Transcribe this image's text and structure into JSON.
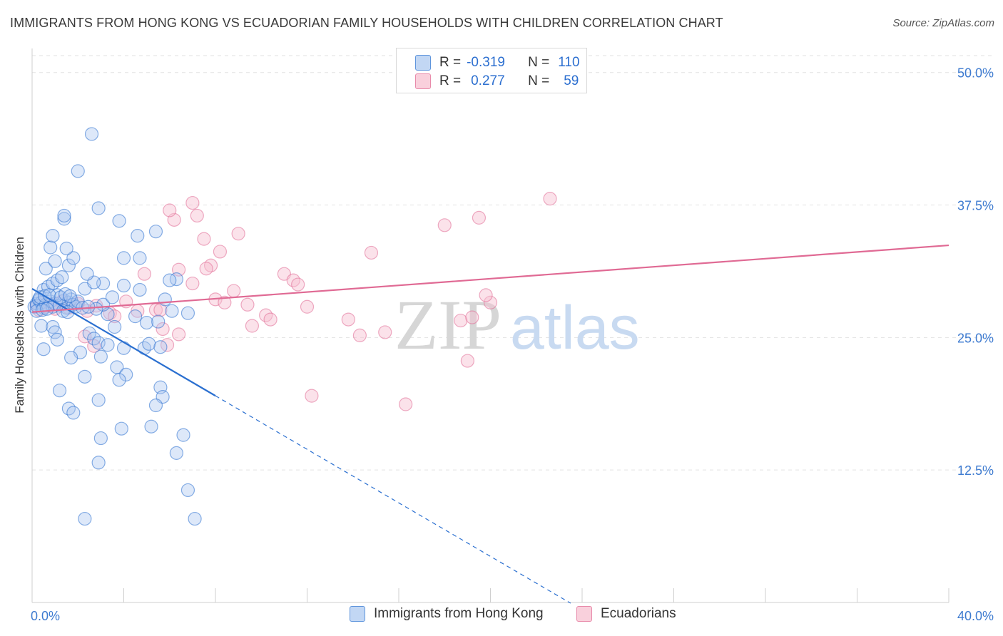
{
  "header": {
    "title": "IMMIGRANTS FROM HONG KONG VS ECUADORIAN FAMILY HOUSEHOLDS WITH CHILDREN CORRELATION CHART",
    "source": "Source: ZipAtlas.com"
  },
  "legend": {
    "rows": [
      {
        "r_label": "R =",
        "r_value": "-0.319",
        "n_label": "N =",
        "n_value": "110"
      },
      {
        "r_label": "R =",
        "r_value": "0.277",
        "n_label": "N =",
        "n_value": "59"
      }
    ]
  },
  "bottom_legend": {
    "series1": "Immigrants from Hong Kong",
    "series2": "Ecuadorians"
  },
  "watermark": {
    "zip": "ZIP",
    "atlas": "atlas"
  },
  "colors": {
    "blue": "#2a6fd0",
    "blue_fill": "#a9c6ef",
    "pink": "#e06a94",
    "pink_fill": "#f6bfd0",
    "axis_text": "#3e7bd0",
    "grid": "#e2e2e2"
  },
  "chart_data": {
    "type": "scatter",
    "title": "IMMIGRANTS FROM HONG KONG VS ECUADORIAN FAMILY HOUSEHOLDS WITH CHILDREN CORRELATION CHART",
    "xlabel": "",
    "ylabel": "Family Households with Children",
    "xlim": [
      0,
      40
    ],
    "ylim": [
      0,
      52
    ],
    "x_tick_labels": [
      "0.0%",
      "40.0%"
    ],
    "y_ticks": [
      12.5,
      25.0,
      37.5,
      50.0
    ],
    "y_tick_labels": [
      "12.5%",
      "25.0%",
      "37.5%",
      "50.0%"
    ],
    "grid": true,
    "legend_position": "top-center",
    "series": [
      {
        "name": "Immigrants from Hong Kong",
        "color": "#2a6fd0",
        "R": -0.319,
        "N": 110,
        "trend": {
          "x0": 0.0,
          "y0": 29.6,
          "x1": 8.0,
          "y1": 19.5,
          "dashed_to_x": 23.5
        },
        "points": [
          [
            0.1,
            27.9
          ],
          [
            0.2,
            28.2
          ],
          [
            0.3,
            28.5
          ],
          [
            0.2,
            28.0
          ],
          [
            0.4,
            28.3
          ],
          [
            0.5,
            27.8
          ],
          [
            0.3,
            28.6
          ],
          [
            0.6,
            28.1
          ],
          [
            0.8,
            28.4
          ],
          [
            0.9,
            27.9
          ],
          [
            1.0,
            28.2
          ],
          [
            1.2,
            28.0
          ],
          [
            1.4,
            28.5
          ],
          [
            1.5,
            27.8
          ],
          [
            1.6,
            28.3
          ],
          [
            1.7,
            28.6
          ],
          [
            1.8,
            28.1
          ],
          [
            1.9,
            27.9
          ],
          [
            2.0,
            28.4
          ],
          [
            2.2,
            27.8
          ],
          [
            0.5,
            29.5
          ],
          [
            0.7,
            29.8
          ],
          [
            0.9,
            30.1
          ],
          [
            1.1,
            30.4
          ],
          [
            1.3,
            30.7
          ],
          [
            0.6,
            31.5
          ],
          [
            1.0,
            32.2
          ],
          [
            1.6,
            31.8
          ],
          [
            1.8,
            32.5
          ],
          [
            0.8,
            33.5
          ],
          [
            1.5,
            33.4
          ],
          [
            0.9,
            34.6
          ],
          [
            1.4,
            36.2
          ],
          [
            1.4,
            36.5
          ],
          [
            2.9,
            37.2
          ],
          [
            3.8,
            36.0
          ],
          [
            4.6,
            34.6
          ],
          [
            5.4,
            35.0
          ],
          [
            6.3,
            30.5
          ],
          [
            2.0,
            40.7
          ],
          [
            2.6,
            44.2
          ],
          [
            4.7,
            32.5
          ],
          [
            4.0,
            32.5
          ],
          [
            3.1,
            30.1
          ],
          [
            3.3,
            27.2
          ],
          [
            4.5,
            27.0
          ],
          [
            3.6,
            26.0
          ],
          [
            2.5,
            25.4
          ],
          [
            2.7,
            24.9
          ],
          [
            2.9,
            24.5
          ],
          [
            3.3,
            24.3
          ],
          [
            4.0,
            24.0
          ],
          [
            4.9,
            24.0
          ],
          [
            5.1,
            24.4
          ],
          [
            5.6,
            24.1
          ],
          [
            2.1,
            23.6
          ],
          [
            1.7,
            23.1
          ],
          [
            3.0,
            23.2
          ],
          [
            3.7,
            22.2
          ],
          [
            4.1,
            21.5
          ],
          [
            3.8,
            21.0
          ],
          [
            2.3,
            21.3
          ],
          [
            5.0,
            26.4
          ],
          [
            5.5,
            26.5
          ],
          [
            6.1,
            27.5
          ],
          [
            6.8,
            27.3
          ],
          [
            5.8,
            28.6
          ],
          [
            6.0,
            30.4
          ],
          [
            4.7,
            29.5
          ],
          [
            4.0,
            29.9
          ],
          [
            3.1,
            28.1
          ],
          [
            2.8,
            27.7
          ],
          [
            3.5,
            28.8
          ],
          [
            2.3,
            29.6
          ],
          [
            2.7,
            30.2
          ],
          [
            2.4,
            31.0
          ],
          [
            1.1,
            29.0
          ],
          [
            0.4,
            26.1
          ],
          [
            0.9,
            26.0
          ],
          [
            1.0,
            25.5
          ],
          [
            1.1,
            24.8
          ],
          [
            0.5,
            23.9
          ],
          [
            1.2,
            20.0
          ],
          [
            1.6,
            18.3
          ],
          [
            1.8,
            17.9
          ],
          [
            2.9,
            19.1
          ],
          [
            3.9,
            16.4
          ],
          [
            3.0,
            15.5
          ],
          [
            5.6,
            20.3
          ],
          [
            5.7,
            19.4
          ],
          [
            5.4,
            18.6
          ],
          [
            5.2,
            16.6
          ],
          [
            6.6,
            15.8
          ],
          [
            6.3,
            14.1
          ],
          [
            2.9,
            13.2
          ],
          [
            6.8,
            10.6
          ],
          [
            2.3,
            7.9
          ],
          [
            7.1,
            7.9
          ],
          [
            0.2,
            27.5
          ],
          [
            0.35,
            28.8
          ],
          [
            0.45,
            27.6
          ],
          [
            0.55,
            28.9
          ],
          [
            0.65,
            27.7
          ],
          [
            0.75,
            29.0
          ],
          [
            1.25,
            28.8
          ],
          [
            1.35,
            27.5
          ],
          [
            1.45,
            29.1
          ],
          [
            1.55,
            27.4
          ],
          [
            1.65,
            28.9
          ],
          [
            2.45,
            27.9
          ]
        ]
      },
      {
        "name": "Ecuadorians",
        "color": "#e06a94",
        "R": 0.277,
        "N": 59,
        "trend": {
          "x0": 0.0,
          "y0": 27.4,
          "x1": 40.0,
          "y1": 33.7
        },
        "points": [
          [
            0.2,
            28.0
          ],
          [
            0.3,
            27.6
          ],
          [
            0.5,
            28.3
          ],
          [
            0.6,
            27.9
          ],
          [
            0.8,
            28.1
          ],
          [
            1.0,
            27.7
          ],
          [
            1.3,
            28.4
          ],
          [
            1.6,
            27.8
          ],
          [
            2.0,
            28.2
          ],
          [
            2.4,
            27.5
          ],
          [
            2.8,
            28.0
          ],
          [
            3.4,
            27.3
          ],
          [
            3.6,
            27.0
          ],
          [
            4.1,
            28.4
          ],
          [
            4.6,
            27.5
          ],
          [
            5.4,
            27.6
          ],
          [
            4.9,
            31.0
          ],
          [
            5.6,
            27.6
          ],
          [
            6.4,
            25.3
          ],
          [
            5.9,
            24.3
          ],
          [
            2.7,
            24.2
          ],
          [
            2.3,
            25.1
          ],
          [
            5.7,
            25.8
          ],
          [
            6.2,
            36.1
          ],
          [
            6.0,
            37.0
          ],
          [
            6.4,
            31.4
          ],
          [
            7.0,
            37.7
          ],
          [
            7.2,
            36.5
          ],
          [
            7.5,
            34.3
          ],
          [
            7.8,
            31.8
          ],
          [
            7.0,
            30.1
          ],
          [
            7.6,
            31.5
          ],
          [
            8.0,
            28.6
          ],
          [
            8.4,
            28.3
          ],
          [
            8.2,
            33.1
          ],
          [
            9.0,
            34.8
          ],
          [
            8.8,
            29.4
          ],
          [
            9.4,
            28.1
          ],
          [
            10.2,
            27.1
          ],
          [
            10.4,
            26.7
          ],
          [
            9.6,
            26.1
          ],
          [
            11.0,
            31.0
          ],
          [
            11.4,
            30.4
          ],
          [
            11.6,
            30.0
          ],
          [
            12.0,
            27.9
          ],
          [
            14.8,
            33.0
          ],
          [
            18.0,
            35.6
          ],
          [
            19.5,
            36.3
          ],
          [
            20.0,
            28.3
          ],
          [
            19.8,
            29.0
          ],
          [
            18.7,
            26.6
          ],
          [
            19.2,
            26.9
          ],
          [
            13.8,
            26.7
          ],
          [
            14.3,
            25.2
          ],
          [
            16.3,
            18.7
          ],
          [
            15.4,
            25.5
          ],
          [
            12.2,
            19.5
          ],
          [
            22.6,
            38.1
          ],
          [
            19.0,
            22.8
          ]
        ]
      }
    ]
  }
}
